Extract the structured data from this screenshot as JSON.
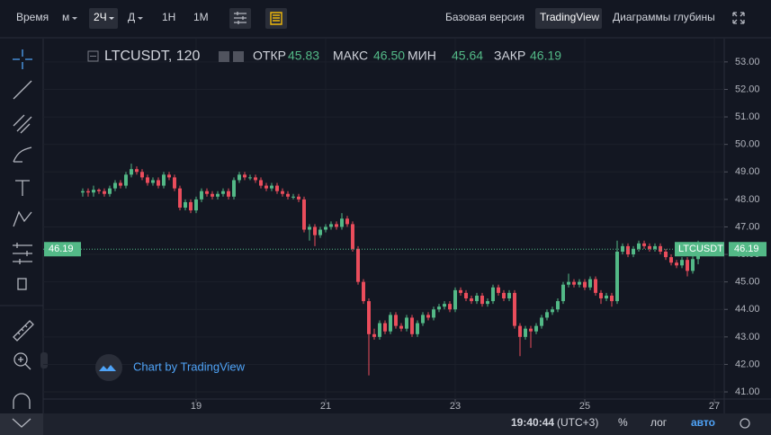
{
  "toolbar": {
    "time": "Время",
    "minutes": "м",
    "interval": "2Ч",
    "day": "Д",
    "week": "1Н",
    "month": "1М",
    "basic": "Базовая версия",
    "tradingview": "TradingView",
    "depth": "Диаграммы глубины"
  },
  "legend": {
    "symbol": "LTCUSDT, 120",
    "open_label": "ОТКР",
    "high_label": "МАКС",
    "low_label": "МИН",
    "close_label": "ЗАКР",
    "open": "45.83",
    "high": "46.50",
    "low": "45.64",
    "close": "46.19",
    "ticker": "LTCUSDT"
  },
  "watermark": "Chart by TradingView",
  "status_bar": {
    "clock": "19:40:44",
    "timezone": "(UTC+3)",
    "percent": "%",
    "log": "лог",
    "auto": "авто"
  },
  "chart_data": {
    "type": "candlestick",
    "up_color": "#53b987",
    "down_color": "#eb4d5c",
    "grid": true,
    "xlim": [
      -0.33,
      118.83
    ],
    "ylim": [
      40.74,
      53.78
    ],
    "xticks": [
      {
        "value": 21,
        "label": "19"
      },
      {
        "value": 45,
        "label": "21"
      },
      {
        "value": 69,
        "label": "23"
      },
      {
        "value": 93,
        "label": "25"
      },
      {
        "value": 117,
        "label": "27"
      }
    ],
    "yticks": [
      {
        "value": 41,
        "label": "41.00"
      },
      {
        "value": 42,
        "label": "42.00"
      },
      {
        "value": 43,
        "label": "43.00"
      },
      {
        "value": 44,
        "label": "44.00"
      },
      {
        "value": 45,
        "label": "45.00"
      },
      {
        "value": 46,
        "label": "46.00"
      },
      {
        "value": 47,
        "label": "47.00"
      },
      {
        "value": 48,
        "label": "48.00"
      },
      {
        "value": 49,
        "label": "49.00"
      },
      {
        "value": 50,
        "label": "50.00"
      },
      {
        "value": 51,
        "label": "51.00"
      },
      {
        "value": 52,
        "label": "52.00"
      },
      {
        "value": 53,
        "label": "53.00"
      }
    ],
    "open": [
      48.25,
      48.3,
      48.25,
      48.35,
      48.3,
      48.2,
      48.4,
      48.6,
      48.5,
      48.9,
      49.1,
      49.0,
      48.8,
      48.6,
      48.7,
      48.5,
      48.9,
      48.8,
      48.4,
      47.7,
      47.9,
      47.6,
      48.0,
      48.3,
      48.2,
      48.1,
      48.2,
      48.3,
      48.1,
      48.7,
      48.9,
      48.8,
      48.8,
      48.7,
      48.5,
      48.4,
      48.5,
      48.3,
      48.2,
      48.1,
      48.1,
      48.0,
      46.9,
      47.0,
      46.7,
      46.9,
      47.0,
      47.1,
      47.0,
      47.3,
      47.1,
      46.2,
      45.0,
      44.3,
      43.1,
      43.0,
      43.5,
      43.2,
      43.8,
      43.4,
      43.3,
      43.7,
      43.1,
      43.5,
      43.8,
      43.7,
      44.0,
      44.1,
      44.2,
      44.0,
      44.7,
      44.6,
      44.4,
      44.3,
      44.5,
      44.2,
      44.3,
      44.8,
      44.6,
      44.4,
      44.6,
      43.4,
      43.0,
      43.3,
      43.2,
      43.4,
      43.7,
      43.9,
      44.0,
      44.3,
      44.9,
      45.0,
      44.9,
      45.0,
      44.8,
      45.1,
      44.6,
      44.4,
      44.5,
      44.3,
      46.1,
      46.3,
      46.0,
      46.2,
      46.4,
      46.3,
      46.2,
      46.3,
      46.1,
      45.9,
      45.7,
      45.6,
      45.8,
      45.4,
      45.83
    ],
    "high": [
      48.4,
      48.4,
      48.5,
      48.4,
      48.4,
      48.5,
      48.7,
      48.7,
      49.0,
      49.3,
      49.2,
      49.1,
      48.9,
      48.8,
      48.8,
      49.0,
      49.0,
      48.9,
      48.5,
      48.0,
      48.0,
      48.1,
      48.4,
      48.4,
      48.3,
      48.3,
      48.4,
      48.4,
      48.8,
      49.0,
      49.0,
      48.9,
      48.9,
      48.8,
      48.6,
      48.6,
      48.6,
      48.4,
      48.3,
      48.2,
      48.2,
      48.1,
      47.1,
      47.1,
      47.0,
      47.1,
      47.2,
      47.2,
      47.5,
      47.4,
      47.2,
      46.3,
      45.1,
      44.4,
      43.3,
      43.6,
      43.6,
      43.9,
      43.9,
      43.5,
      43.8,
      43.8,
      43.6,
      43.9,
      43.9,
      44.1,
      44.2,
      44.3,
      44.3,
      44.8,
      44.8,
      44.7,
      44.5,
      44.6,
      44.6,
      44.4,
      44.9,
      44.9,
      44.7,
      44.7,
      44.7,
      43.5,
      43.4,
      43.4,
      43.5,
      43.8,
      44.0,
      44.1,
      44.4,
      45.0,
      45.3,
      45.1,
      45.1,
      45.1,
      45.2,
      45.2,
      44.7,
      44.6,
      44.6,
      46.5,
      46.4,
      46.4,
      46.3,
      46.5,
      46.5,
      46.4,
      46.4,
      46.4,
      46.2,
      46.0,
      45.8,
      45.9,
      45.9,
      46.0,
      46.5
    ],
    "low": [
      48.1,
      48.1,
      48.1,
      48.2,
      48.1,
      48.1,
      48.3,
      48.4,
      48.4,
      48.8,
      48.9,
      48.7,
      48.5,
      48.5,
      48.4,
      48.4,
      48.7,
      48.3,
      47.6,
      47.6,
      47.5,
      47.5,
      47.9,
      48.1,
      48.0,
      48.0,
      48.1,
      48.0,
      48.0,
      48.6,
      48.7,
      48.7,
      48.6,
      48.4,
      48.3,
      48.3,
      48.2,
      48.1,
      48.0,
      48.0,
      47.9,
      46.8,
      46.5,
      46.3,
      46.6,
      46.8,
      46.9,
      46.9,
      46.9,
      47.0,
      46.1,
      44.9,
      44.2,
      41.6,
      42.9,
      42.9,
      43.1,
      43.1,
      43.3,
      43.2,
      43.2,
      43.0,
      43.0,
      43.4,
      43.6,
      43.6,
      43.9,
      44.0,
      43.9,
      43.9,
      44.5,
      44.3,
      44.2,
      44.2,
      44.1,
      44.1,
      44.2,
      44.5,
      44.3,
      44.3,
      43.3,
      42.3,
      42.9,
      42.6,
      43.1,
      43.3,
      43.6,
      43.8,
      43.9,
      44.2,
      44.8,
      44.8,
      44.8,
      44.7,
      44.7,
      44.5,
      44.2,
      44.3,
      44.1,
      44.2,
      46.0,
      45.9,
      45.9,
      46.1,
      46.2,
      46.1,
      46.1,
      46.0,
      45.8,
      45.6,
      45.5,
      45.5,
      45.2,
      45.3,
      45.64
    ],
    "close": [
      48.3,
      48.25,
      48.35,
      48.3,
      48.2,
      48.4,
      48.6,
      48.5,
      48.9,
      49.1,
      49.0,
      48.8,
      48.6,
      48.7,
      48.5,
      48.9,
      48.8,
      48.4,
      47.7,
      47.9,
      47.6,
      48.0,
      48.3,
      48.2,
      48.1,
      48.2,
      48.3,
      48.1,
      48.7,
      48.9,
      48.8,
      48.8,
      48.7,
      48.5,
      48.4,
      48.5,
      48.3,
      48.2,
      48.1,
      48.1,
      48.0,
      46.9,
      47.0,
      46.7,
      46.9,
      47.0,
      47.1,
      47.0,
      47.3,
      47.1,
      46.2,
      45.0,
      44.3,
      43.1,
      43.0,
      43.5,
      43.2,
      43.8,
      43.4,
      43.3,
      43.7,
      43.1,
      43.5,
      43.8,
      43.7,
      44.0,
      44.1,
      44.2,
      44.0,
      44.7,
      44.6,
      44.4,
      44.3,
      44.5,
      44.2,
      44.3,
      44.8,
      44.6,
      44.4,
      44.6,
      43.4,
      43.0,
      43.3,
      43.2,
      43.4,
      43.7,
      43.9,
      44.0,
      44.3,
      44.9,
      45.0,
      44.9,
      45.0,
      44.8,
      45.1,
      44.6,
      44.4,
      44.5,
      44.3,
      46.1,
      46.3,
      46.0,
      46.2,
      46.4,
      46.3,
      46.2,
      46.3,
      46.1,
      45.9,
      45.7,
      45.6,
      45.8,
      45.4,
      45.83,
      46.19
    ]
  }
}
